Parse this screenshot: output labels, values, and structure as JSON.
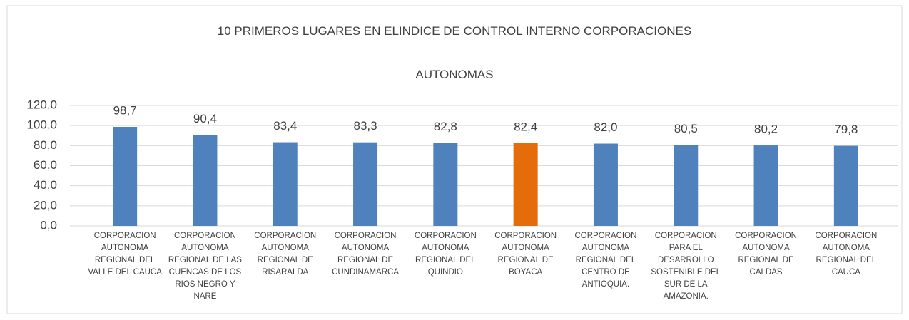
{
  "chart_data": {
    "type": "bar",
    "title": [
      "10 PRIMEROS LUGARES EN ELINDICE DE CONTROL INTERNO CORPORACIONES",
      "AUTONOMAS"
    ],
    "categories": [
      "CORPORACION AUTONOMA REGIONAL DEL VALLE DEL CAUCA",
      "CORPORACION AUTONOMA REGIONAL DE LAS CUENCAS DE LOS RIOS NEGRO Y NARE",
      "CORPORACION AUTONOMA REGIONAL DE RISARALDA",
      "CORPORACION AUTONOMA REGIONAL DE CUNDINAMARCA",
      "CORPORACION AUTONOMA REGIONAL DEL QUINDIO",
      "CORPORACION AUTONOMA REGIONAL DE BOYACA",
      "CORPORACION AUTONOMA REGIONAL DEL CENTRO DE ANTIOQUIA.",
      "CORPORACION PARA EL DESARROLLO SOSTENIBLE DEL SUR DE LA AMAZONIA.",
      "CORPORACION AUTONOMA REGIONAL DE CALDAS",
      "CORPORACION AUTONOMA REGIONAL DEL CAUCA"
    ],
    "values": [
      98.7,
      90.4,
      83.4,
      83.3,
      82.8,
      82.4,
      82.0,
      80.5,
      80.2,
      79.8
    ],
    "value_labels": [
      "98,7",
      "90,4",
      "83,4",
      "83,3",
      "82,8",
      "82,4",
      "82,0",
      "80,5",
      "80,2",
      "79,8"
    ],
    "colors": [
      "#4f81bd",
      "#4f81bd",
      "#4f81bd",
      "#4f81bd",
      "#4f81bd",
      "#e46c0a",
      "#4f81bd",
      "#4f81bd",
      "#4f81bd",
      "#4f81bd"
    ],
    "ylim": [
      0,
      120
    ],
    "yticks": [
      {
        "value": 0,
        "label": "0,0"
      },
      {
        "value": 20,
        "label": "20,0"
      },
      {
        "value": 40,
        "label": "40,0"
      },
      {
        "value": 60,
        "label": "60,0"
      },
      {
        "value": 80,
        "label": "80,0"
      },
      {
        "value": 100,
        "label": "100,0"
      },
      {
        "value": 120,
        "label": "120,0"
      }
    ],
    "grid": true
  }
}
